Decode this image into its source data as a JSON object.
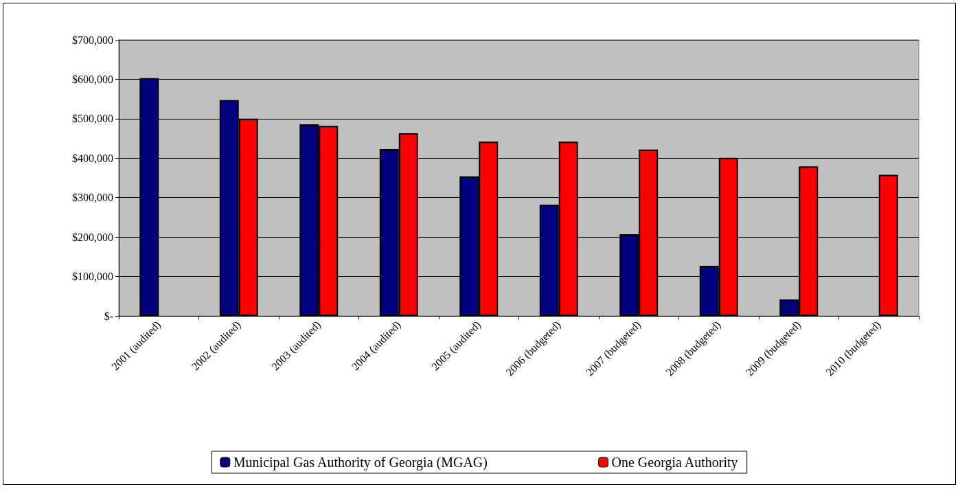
{
  "chart_data": {
    "type": "bar",
    "categories": [
      "2001 (audited)",
      "2002 (audited)",
      "2003 (audited)",
      "2004 (audited)",
      "2005 (audited)",
      "2006 (budgeted)",
      "2007 (budgeted)",
      "2008 (budgeted)",
      "2009 (budgeted)",
      "2010 (budgeted)"
    ],
    "series": [
      {
        "name": "Municipal Gas Authority of Georgia (MGAG)",
        "color": "#000080",
        "values": [
          603000,
          547000,
          486000,
          423000,
          354000,
          282000,
          207000,
          127000,
          42000,
          null
        ]
      },
      {
        "name": "One Georgia Authority",
        "color": "#ff0000",
        "values": [
          null,
          500000,
          482000,
          463000,
          442000,
          442000,
          422000,
          401000,
          379000,
          358000
        ]
      }
    ],
    "ylim": [
      0,
      700000
    ],
    "yticks": [
      {
        "value": 0,
        "label": "$-"
      },
      {
        "value": 100000,
        "label": "$100,000"
      },
      {
        "value": 200000,
        "label": "$200,000"
      },
      {
        "value": 300000,
        "label": "$300,000"
      },
      {
        "value": 400000,
        "label": "$400,000"
      },
      {
        "value": 500000,
        "label": "$500,000"
      },
      {
        "value": 600000,
        "label": "$600,000"
      },
      {
        "value": 700000,
        "label": "$700,000"
      }
    ],
    "grid": "y",
    "legend": "bottom"
  }
}
